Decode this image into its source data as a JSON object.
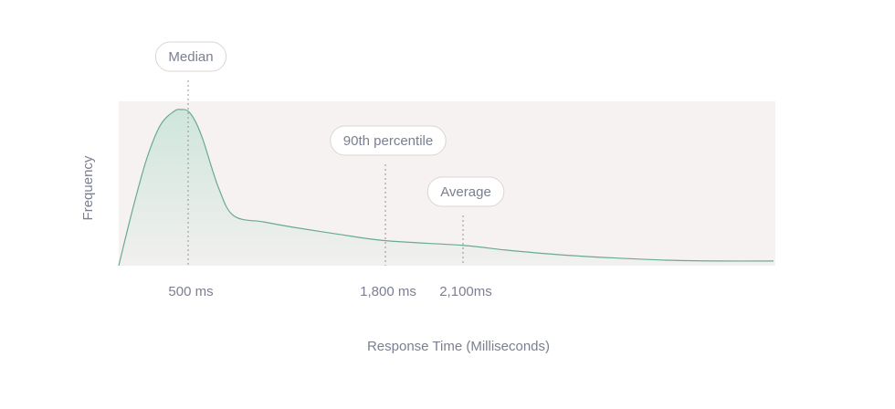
{
  "chart_data": {
    "type": "area",
    "xlabel": "Response Time (Milliseconds)",
    "ylabel": "Frequency",
    "x_ticks": [
      {
        "value": 500,
        "label": "500 ms"
      },
      {
        "value": 1800,
        "label": "1,800 ms"
      },
      {
        "value": 2100,
        "label": "2,100ms"
      }
    ],
    "markers": [
      {
        "name": "Median",
        "x": 500
      },
      {
        "name": "90th percentile",
        "x": 1800
      },
      {
        "name": "Average",
        "x": 2100
      }
    ],
    "xlim": [
      0,
      5000
    ],
    "ylim": [
      0,
      1
    ],
    "grid": false,
    "series": [
      {
        "x": [
          0,
          100,
          200,
          300,
          400,
          450,
          500,
          550,
          600,
          700,
          800,
          1000,
          1200,
          1500,
          1800,
          2100,
          2500,
          3000,
          3500,
          4000,
          4500,
          5000
        ],
        "values": [
          0,
          0.36,
          0.68,
          0.9,
          0.99,
          1.0,
          0.99,
          0.92,
          0.8,
          0.5,
          0.32,
          0.28,
          0.245,
          0.2,
          0.16,
          0.13,
          0.1,
          0.07,
          0.05,
          0.035,
          0.03,
          0.03
        ]
      }
    ],
    "colors": {
      "background_band": "#f6f2f1",
      "line": "#6aaa90",
      "fill_top": "#cfe6dc",
      "fill_bottom": "#f1f0ee"
    }
  }
}
